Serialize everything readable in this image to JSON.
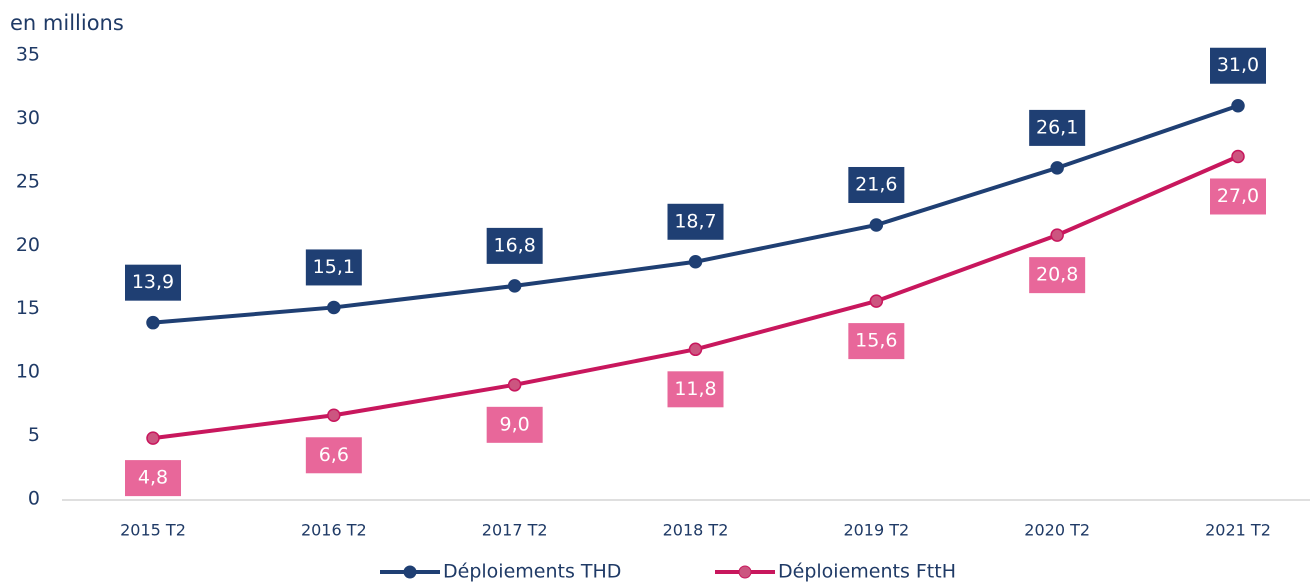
{
  "chart_data": {
    "type": "line",
    "y_label": "en millions",
    "categories": [
      "2015 T2",
      "2016 T2",
      "2017 T2",
      "2018 T2",
      "2019 T2",
      "2020 T2",
      "2021 T2"
    ],
    "series": [
      {
        "name": "Déploiements THD",
        "color": "#1f3f73",
        "label_color": "#1f3f73",
        "label_position": "above",
        "values": [
          13.9,
          15.1,
          16.8,
          18.7,
          21.6,
          26.1,
          31.0
        ],
        "value_labels": [
          "13,9",
          "15,1",
          "16,8",
          "18,7",
          "21,6",
          "26,1",
          "31,0"
        ]
      },
      {
        "name": "Déploiements FttH",
        "color": "#c8175d",
        "marker_color": "#cc5580",
        "label_color": "#e8679a",
        "label_position": "below",
        "values": [
          4.8,
          6.6,
          9.0,
          11.8,
          15.6,
          20.8,
          27.0
        ],
        "value_labels": [
          "4,8",
          "6,6",
          "9,0",
          "11,8",
          "15,6",
          "20,8",
          "27,0"
        ]
      }
    ],
    "ylim": [
      0,
      35
    ],
    "yticks": [
      0,
      5,
      10,
      15,
      20,
      25,
      30,
      35
    ],
    "grid": false,
    "legend": "bottom"
  }
}
